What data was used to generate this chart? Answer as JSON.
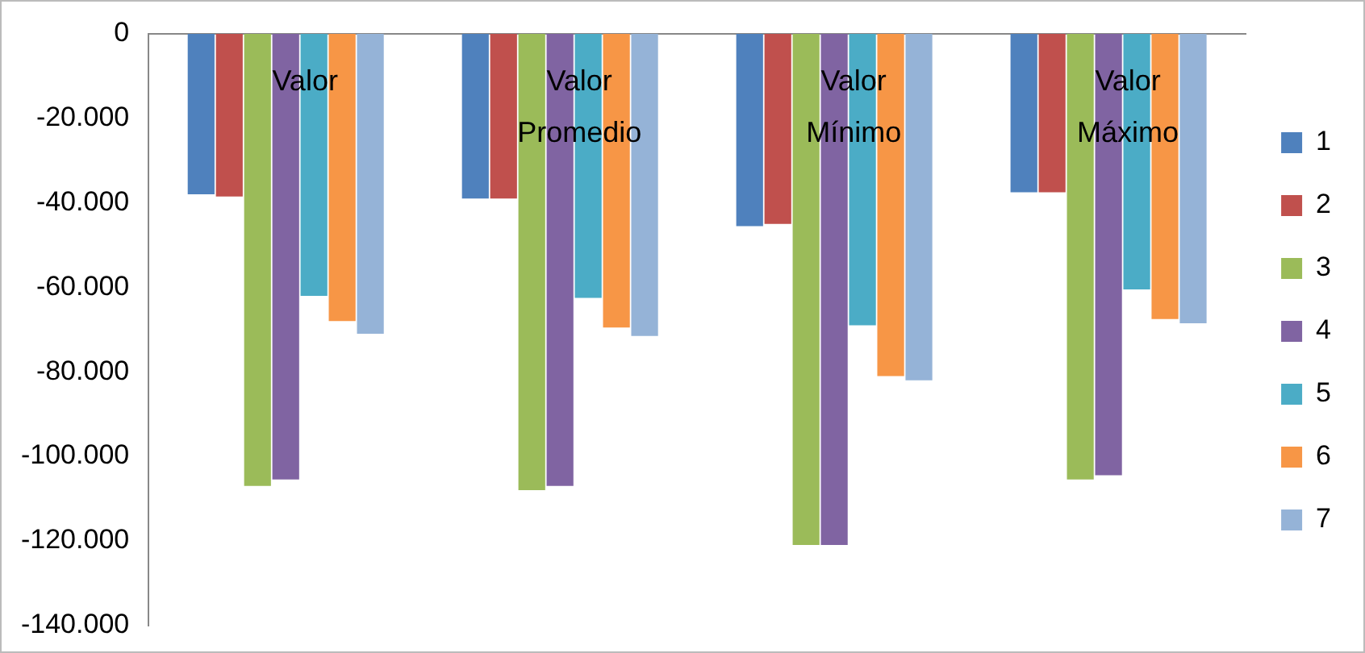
{
  "chart_data": {
    "type": "bar",
    "categories": [
      "Valor",
      "Valor Promedio",
      "Valor Mínimo",
      "Valor Máximo"
    ],
    "series": [
      {
        "name": "1",
        "color": "#4f81bd",
        "values": [
          -38000,
          -39000,
          -45500,
          -37500
        ]
      },
      {
        "name": "2",
        "color": "#c0504d",
        "values": [
          -38500,
          -39000,
          -45000,
          -37500
        ]
      },
      {
        "name": "3",
        "color": "#9bbb59",
        "values": [
          -107000,
          -108000,
          -121000,
          -105500
        ]
      },
      {
        "name": "4",
        "color": "#8064a2",
        "values": [
          -105500,
          -107000,
          -121000,
          -104500
        ]
      },
      {
        "name": "5",
        "color": "#4bacc6",
        "values": [
          -62000,
          -62500,
          -69000,
          -60500
        ]
      },
      {
        "name": "6",
        "color": "#f79646",
        "values": [
          -68000,
          -69500,
          -81000,
          -67500
        ]
      },
      {
        "name": "7",
        "color": "#95b3d7",
        "values": [
          -71000,
          -71500,
          -82000,
          -68500
        ]
      }
    ],
    "ylim": [
      -140000,
      0
    ],
    "yticks": [
      {
        "value": 0,
        "label": "0"
      },
      {
        "value": -20000,
        "label": "-20.000"
      },
      {
        "value": -40000,
        "label": "-40.000"
      },
      {
        "value": -60000,
        "label": "-60.000"
      },
      {
        "value": -80000,
        "label": "-80.000"
      },
      {
        "value": -100000,
        "label": "-100.000"
      },
      {
        "value": -120000,
        "label": "-120.000"
      },
      {
        "value": -140000,
        "label": "-140.000"
      }
    ],
    "grid": false,
    "legend": "right"
  }
}
